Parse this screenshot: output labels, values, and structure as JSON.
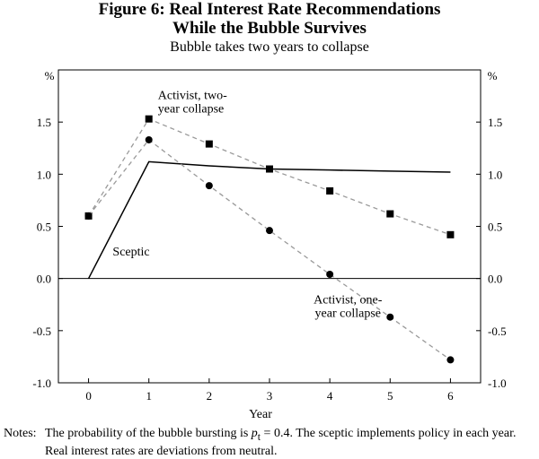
{
  "chart_data": {
    "type": "line",
    "title": "Figure 6: Real Interest Rate Recommendations",
    "title_line2": "While the Bubble Survives",
    "subtitle": "Bubble takes two years to collapse",
    "xlabel": "Year",
    "ylabel_left": "%",
    "ylabel_right": "%",
    "x": [
      0,
      1,
      2,
      3,
      4,
      5,
      6
    ],
    "xlim": [
      -0.5,
      6.5
    ],
    "ylim": [
      -1.0,
      2.0
    ],
    "x_ticks": [
      "0",
      "1",
      "2",
      "3",
      "4",
      "5",
      "6"
    ],
    "y_ticks": [
      "-1.0",
      "-0.5",
      "0.0",
      "0.5",
      "1.0",
      "1.5"
    ],
    "y_tick_values": [
      -1.0,
      -0.5,
      0.0,
      0.5,
      1.0,
      1.5
    ],
    "series": [
      {
        "name": "Sceptic",
        "style": "solid",
        "marker": "none",
        "values": [
          0.0,
          1.12,
          1.08,
          1.05,
          1.04,
          1.03,
          1.02
        ]
      },
      {
        "name": "Activist, two-year collapse",
        "style": "dashed",
        "marker": "square",
        "values": [
          0.6,
          1.53,
          1.29,
          1.05,
          0.84,
          0.62,
          0.42
        ]
      },
      {
        "name": "Activist, one-year collapse",
        "style": "dashed",
        "marker": "circle",
        "values": [
          0.6,
          1.33,
          0.89,
          0.46,
          0.04,
          -0.37,
          -0.78
        ]
      }
    ],
    "annotations": {
      "sceptic": "Sceptic",
      "two_year_line1": "Activist, two-",
      "two_year_line2": "year collapse",
      "one_year_line1": "Activist, one-",
      "one_year_line2": "year collapse"
    },
    "colors": {
      "solid": "#000000",
      "dashed": "#9a9a9a",
      "marker": "#000000"
    }
  },
  "notes": {
    "label": "Notes:",
    "line1_prefix": "The probability of the bubble bursting is ",
    "line1_var": "p",
    "line1_sub": "t",
    "line1_suffix": " = 0.4. The sceptic implements policy in each year.",
    "line2": "Real interest rates are deviations from neutral."
  }
}
